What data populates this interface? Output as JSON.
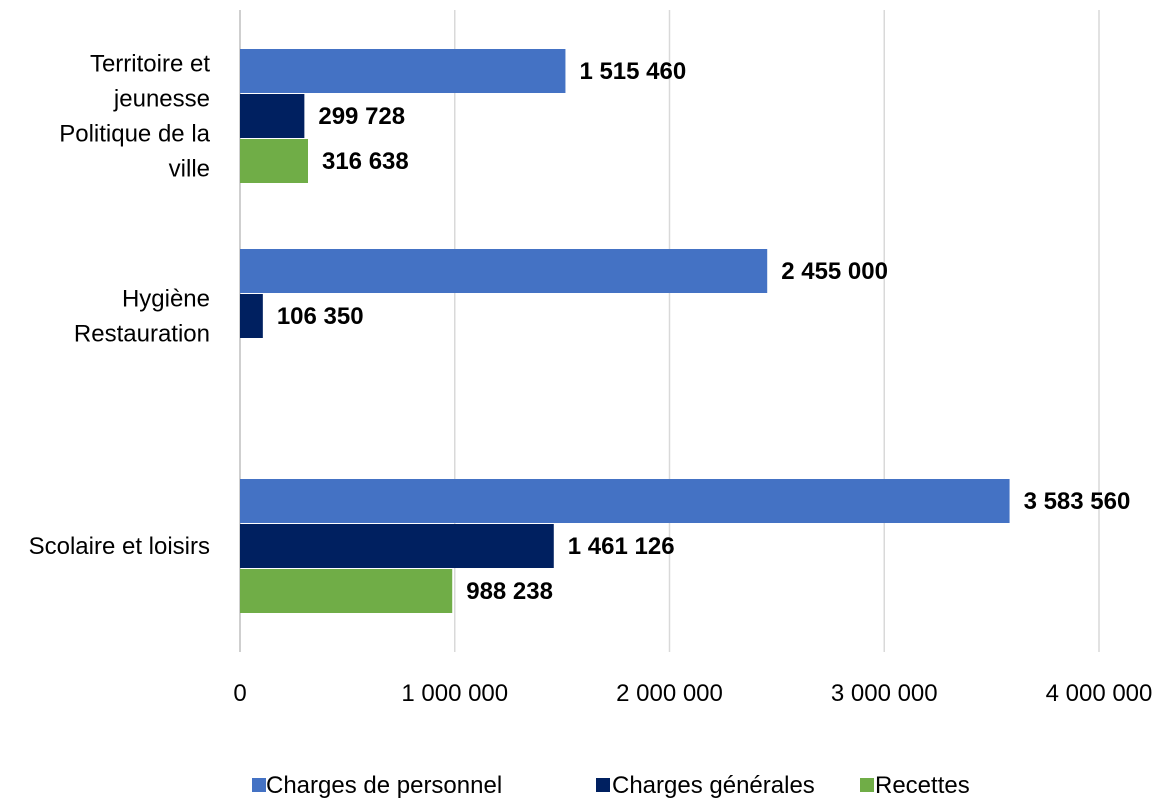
{
  "chart_data": {
    "type": "bar",
    "orientation": "horizontal",
    "categories": [
      [
        "Territoire et",
        "jeunesse",
        "Politique de la",
        "ville"
      ],
      [
        "Hygiène",
        "Restauration"
      ],
      [
        "Scolaire et loisirs"
      ]
    ],
    "series": [
      {
        "name": "Charges de personnel",
        "color": "#4472C4",
        "values": [
          1515460,
          2455000,
          3583560
        ],
        "labels": [
          "1 515 460",
          "2 455 000",
          "3 583 560"
        ]
      },
      {
        "name": "Charges générales",
        "color": "#002060",
        "values": [
          299728,
          106350,
          1461126
        ],
        "labels": [
          "299 728",
          "106 350",
          "1 461 126"
        ]
      },
      {
        "name": "Recettes",
        "color": "#70AD47",
        "values": [
          316638,
          null,
          988238
        ],
        "labels": [
          "316 638",
          "",
          "988 238"
        ]
      }
    ],
    "xlim": [
      0,
      4000000
    ],
    "xticks": [
      0,
      1000000,
      2000000,
      3000000,
      4000000
    ],
    "xtick_labels": [
      "0",
      "1 000 000",
      "2 000 000",
      "3 000 000",
      "4 000 000"
    ],
    "title": "",
    "xlabel": "",
    "ylabel": "",
    "grid": "vertical",
    "legend_position": "bottom"
  }
}
